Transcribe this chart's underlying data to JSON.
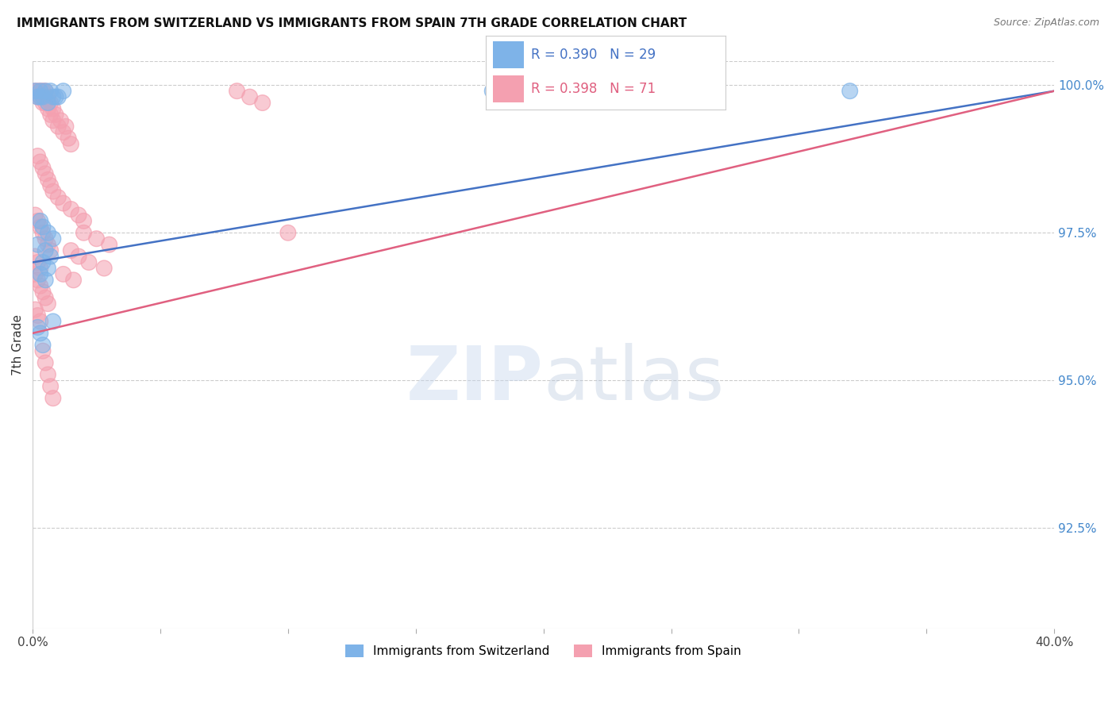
{
  "title": "IMMIGRANTS FROM SWITZERLAND VS IMMIGRANTS FROM SPAIN 7TH GRADE CORRELATION CHART",
  "source": "Source: ZipAtlas.com",
  "ylabel": "7th Grade",
  "xlim": [
    0.0,
    0.4
  ],
  "ylim": [
    0.908,
    1.004
  ],
  "xtick_positions": [
    0.0,
    0.05,
    0.1,
    0.15,
    0.2,
    0.25,
    0.3,
    0.35,
    0.4
  ],
  "xtick_labels": [
    "0.0%",
    "",
    "",
    "",
    "",
    "",
    "",
    "",
    "40.0%"
  ],
  "yticks_right": [
    0.925,
    0.95,
    0.975,
    1.0
  ],
  "ytick_right_labels": [
    "92.5%",
    "95.0%",
    "97.5%",
    "100.0%"
  ],
  "blue_color": "#7EB3E8",
  "pink_color": "#F4A0B0",
  "blue_line_color": "#4472C4",
  "pink_line_color": "#E06080",
  "blue_R": 0.39,
  "blue_N": 29,
  "pink_R": 0.398,
  "pink_N": 71,
  "blue_trend_x": [
    0.0,
    0.4
  ],
  "blue_trend_y": [
    0.97,
    0.999
  ],
  "pink_trend_x": [
    0.0,
    0.4
  ],
  "pink_trend_y": [
    0.958,
    0.999
  ],
  "blue_x": [
    0.001,
    0.002,
    0.003,
    0.003,
    0.004,
    0.005,
    0.006,
    0.007,
    0.008,
    0.009,
    0.01,
    0.012,
    0.003,
    0.004,
    0.006,
    0.008,
    0.002,
    0.005,
    0.007,
    0.004,
    0.006,
    0.003,
    0.005,
    0.18,
    0.32,
    0.002,
    0.003,
    0.004,
    0.008
  ],
  "blue_y": [
    0.999,
    0.998,
    0.999,
    0.998,
    0.998,
    0.999,
    0.997,
    0.999,
    0.998,
    0.998,
    0.998,
    0.999,
    0.977,
    0.976,
    0.975,
    0.974,
    0.973,
    0.972,
    0.971,
    0.97,
    0.969,
    0.968,
    0.967,
    0.999,
    0.999,
    0.959,
    0.958,
    0.956,
    0.96
  ],
  "pink_x": [
    0.001,
    0.002,
    0.002,
    0.003,
    0.003,
    0.004,
    0.004,
    0.005,
    0.005,
    0.006,
    0.006,
    0.007,
    0.007,
    0.008,
    0.008,
    0.009,
    0.01,
    0.011,
    0.012,
    0.013,
    0.014,
    0.015,
    0.002,
    0.003,
    0.004,
    0.005,
    0.006,
    0.007,
    0.008,
    0.01,
    0.012,
    0.015,
    0.018,
    0.02,
    0.001,
    0.002,
    0.003,
    0.004,
    0.005,
    0.006,
    0.007,
    0.001,
    0.002,
    0.003,
    0.001,
    0.002,
    0.003,
    0.004,
    0.005,
    0.006,
    0.001,
    0.002,
    0.003,
    0.08,
    0.085,
    0.09,
    0.02,
    0.025,
    0.03,
    0.015,
    0.018,
    0.022,
    0.028,
    0.012,
    0.016,
    0.004,
    0.005,
    0.006,
    0.007,
    0.008,
    0.1
  ],
  "pink_y": [
    0.999,
    0.999,
    0.998,
    0.999,
    0.998,
    0.999,
    0.997,
    0.999,
    0.997,
    0.998,
    0.996,
    0.997,
    0.995,
    0.996,
    0.994,
    0.995,
    0.993,
    0.994,
    0.992,
    0.993,
    0.991,
    0.99,
    0.988,
    0.987,
    0.986,
    0.985,
    0.984,
    0.983,
    0.982,
    0.981,
    0.98,
    0.979,
    0.978,
    0.977,
    0.978,
    0.977,
    0.976,
    0.975,
    0.974,
    0.973,
    0.972,
    0.971,
    0.97,
    0.969,
    0.968,
    0.967,
    0.966,
    0.965,
    0.964,
    0.963,
    0.962,
    0.961,
    0.96,
    0.999,
    0.998,
    0.997,
    0.975,
    0.974,
    0.973,
    0.972,
    0.971,
    0.97,
    0.969,
    0.968,
    0.967,
    0.955,
    0.953,
    0.951,
    0.949,
    0.947,
    0.975
  ],
  "grid_color": "#CCCCCC",
  "spine_color": "#CCCCCC"
}
